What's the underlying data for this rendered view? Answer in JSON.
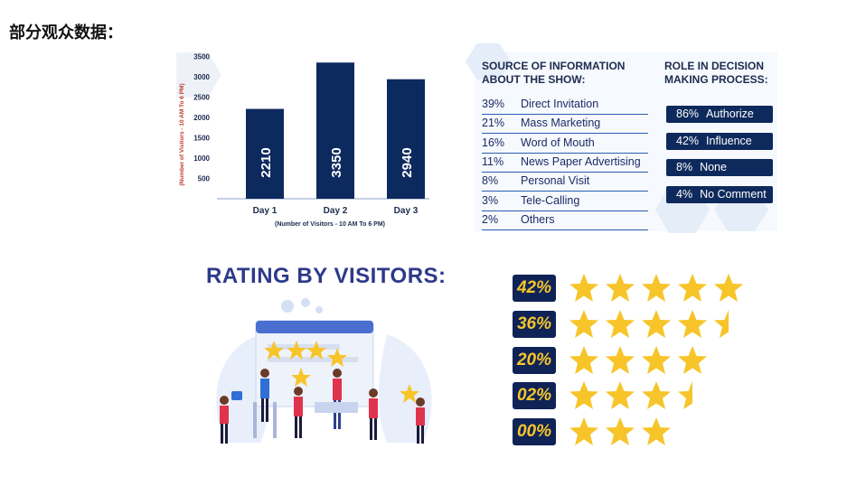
{
  "page": {
    "title": "部分观众数据："
  },
  "chart_data": {
    "type": "bar",
    "categories": [
      "Day 1",
      "Day 2",
      "Day 3"
    ],
    "values": [
      2210,
      3350,
      2940
    ],
    "ylabel": "(Number of Visitors - 10 AM To 6 PM)",
    "xlabel": "(Number of Visitors - 10 AM To 6 PM)",
    "yticks": [
      500,
      1000,
      1500,
      2000,
      2500,
      3000,
      3500
    ],
    "ylim": [
      0,
      3600
    ],
    "grid": false,
    "bar_color": "#0d2a5e",
    "label_color": "#ffffff",
    "ylabel_color": "#c0392b"
  },
  "source": {
    "title": "SOURCE OF INFORMATION ABOUT THE SHOW:",
    "rows": [
      {
        "pct": "39%",
        "label": "Direct Invitation"
      },
      {
        "pct": "21%",
        "label": "Mass Marketing"
      },
      {
        "pct": "16%",
        "label": "Word of Mouth"
      },
      {
        "pct": "11%",
        "label": "News Paper Advertising"
      },
      {
        "pct": "8%",
        "label": "Personal Visit"
      },
      {
        "pct": "3%",
        "label": "Tele-Calling"
      },
      {
        "pct": "2%",
        "label": "Others"
      }
    ]
  },
  "role": {
    "title": "ROLE IN DECISION MAKING PROCESS:",
    "rows": [
      {
        "pct": "86%",
        "label": "Authorize"
      },
      {
        "pct": "42%",
        "label": "Influence"
      },
      {
        "pct": "8%",
        "label": "None"
      },
      {
        "pct": "4%",
        "label": "No Comment"
      }
    ]
  },
  "rating": {
    "title": "RATING BY VISITORS:",
    "rows": [
      {
        "pct": "42%",
        "stars": 5
      },
      {
        "pct": "36%",
        "stars": 4.5
      },
      {
        "pct": "20%",
        "stars": 4
      },
      {
        "pct": "02%",
        "stars": 3.5
      },
      {
        "pct": "00%",
        "stars": 3
      }
    ]
  },
  "colors": {
    "navy": "#0f2356",
    "star": "#f7c52a",
    "accent_blue": "#2b5fb3"
  }
}
